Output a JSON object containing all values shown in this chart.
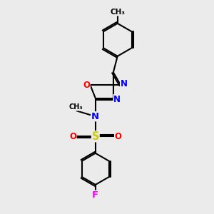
{
  "bg_color": "#ebebeb",
  "bond_color": "#000000",
  "line_width": 1.5,
  "atom_colors": {
    "N": "#0000ff",
    "O": "#ff0000",
    "S": "#cccc00",
    "F": "#ff00ff",
    "C": "#000000"
  },
  "font_size": 8.5,
  "fig_size": [
    3.0,
    3.0
  ],
  "dpi": 100,
  "xlim": [
    0,
    10
  ],
  "ylim": [
    0,
    10
  ]
}
